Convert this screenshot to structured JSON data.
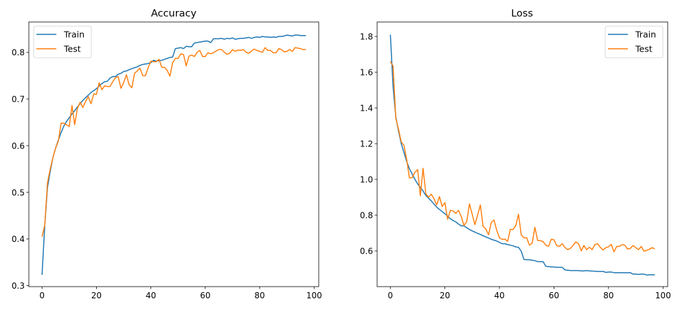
{
  "chart_data": [
    {
      "type": "line",
      "title": "Accuracy",
      "xlabel": "",
      "ylabel": "",
      "xlim": [
        -4.85,
        101.7
      ],
      "ylim": [
        0.298,
        0.865
      ],
      "xticks": [
        0,
        20,
        40,
        60,
        80,
        100
      ],
      "yticks": [
        0.3,
        0.4,
        0.5,
        0.6,
        0.7,
        0.8
      ],
      "xtick_labels": [
        "0",
        "20",
        "40",
        "60",
        "80",
        "100"
      ],
      "ytick_labels": [
        "0.3",
        "0.4",
        "0.5",
        "0.6",
        "0.7",
        "0.8"
      ],
      "grid": false,
      "legend": "upper-left",
      "series": [
        {
          "name": "Train",
          "color": "#1f77b4",
          "values": [
            0.323,
            0.43,
            0.51,
            0.545,
            0.575,
            0.595,
            0.612,
            0.628,
            0.642,
            0.652,
            0.66,
            0.668,
            0.675,
            0.683,
            0.69,
            0.697,
            0.703,
            0.708,
            0.714,
            0.718,
            0.722,
            0.728,
            0.733,
            0.737,
            0.738,
            0.745,
            0.748,
            0.748,
            0.753,
            0.755,
            0.759,
            0.76,
            0.763,
            0.765,
            0.767,
            0.769,
            0.772,
            0.774,
            0.775,
            0.776,
            0.778,
            0.783,
            0.781,
            0.782,
            0.783,
            0.785,
            0.787,
            0.789,
            0.79,
            0.808,
            0.809,
            0.81,
            0.808,
            0.813,
            0.812,
            0.812,
            0.82,
            0.821,
            0.822,
            0.823,
            0.824,
            0.824,
            0.821,
            0.829,
            0.829,
            0.829,
            0.83,
            0.828,
            0.83,
            0.829,
            0.831,
            0.828,
            0.829,
            0.83,
            0.83,
            0.831,
            0.832,
            0.83,
            0.832,
            0.833,
            0.832,
            0.834,
            0.833,
            0.833,
            0.832,
            0.833,
            0.832,
            0.834,
            0.834,
            0.835,
            0.837,
            0.836,
            0.835,
            0.837,
            0.837,
            0.836,
            0.836,
            0.836
          ]
        },
        {
          "name": "Test",
          "color": "#ff7f0e",
          "values": [
            0.405,
            0.43,
            0.52,
            0.55,
            0.575,
            0.595,
            0.61,
            0.648,
            0.648,
            0.645,
            0.641,
            0.686,
            0.645,
            0.68,
            0.693,
            0.682,
            0.695,
            0.705,
            0.69,
            0.711,
            0.71,
            0.735,
            0.72,
            0.728,
            0.727,
            0.727,
            0.737,
            0.746,
            0.748,
            0.723,
            0.735,
            0.752,
            0.731,
            0.724,
            0.755,
            0.76,
            0.766,
            0.75,
            0.75,
            0.767,
            0.781,
            0.78,
            0.78,
            0.785,
            0.768,
            0.768,
            0.761,
            0.749,
            0.778,
            0.787,
            0.787,
            0.797,
            0.795,
            0.771,
            0.792,
            0.794,
            0.791,
            0.8,
            0.804,
            0.791,
            0.791,
            0.799,
            0.797,
            0.799,
            0.803,
            0.806,
            0.806,
            0.8,
            0.796,
            0.798,
            0.806,
            0.802,
            0.805,
            0.804,
            0.806,
            0.8,
            0.798,
            0.803,
            0.807,
            0.804,
            0.802,
            0.8,
            0.81,
            0.804,
            0.804,
            0.799,
            0.799,
            0.808,
            0.806,
            0.801,
            0.802,
            0.806,
            0.802,
            0.81,
            0.809,
            0.808,
            0.806,
            0.806
          ]
        }
      ]
    },
    {
      "type": "line",
      "title": "Loss",
      "xlabel": "",
      "ylabel": "",
      "xlim": [
        -4.85,
        101.7
      ],
      "ylim": [
        0.4,
        1.881
      ],
      "xticks": [
        0,
        20,
        40,
        60,
        80,
        100
      ],
      "yticks": [
        0.6,
        0.8,
        1.0,
        1.2,
        1.4,
        1.6,
        1.8
      ],
      "xtick_labels": [
        "0",
        "20",
        "40",
        "60",
        "80",
        "100"
      ],
      "ytick_labels": [
        "0.6",
        "0.8",
        "1.0",
        "1.2",
        "1.4",
        "1.6",
        "1.8"
      ],
      "grid": false,
      "legend": "upper-right",
      "series": [
        {
          "name": "Train",
          "color": "#1f77b4",
          "values": [
            1.81,
            1.52,
            1.35,
            1.27,
            1.2,
            1.15,
            1.1,
            1.06,
            1.03,
            1.0,
            0.975,
            0.955,
            0.935,
            0.91,
            0.895,
            0.88,
            0.862,
            0.845,
            0.832,
            0.82,
            0.808,
            0.795,
            0.78,
            0.77,
            0.762,
            0.75,
            0.74,
            0.74,
            0.73,
            0.72,
            0.712,
            0.705,
            0.698,
            0.692,
            0.685,
            0.678,
            0.672,
            0.665,
            0.66,
            0.655,
            0.648,
            0.64,
            0.64,
            0.635,
            0.632,
            0.628,
            0.622,
            0.62,
            0.598,
            0.552,
            0.551,
            0.55,
            0.548,
            0.545,
            0.54,
            0.54,
            0.54,
            0.514,
            0.512,
            0.51,
            0.51,
            0.508,
            0.508,
            0.508,
            0.494,
            0.492,
            0.49,
            0.49,
            0.49,
            0.49,
            0.488,
            0.488,
            0.49,
            0.488,
            0.487,
            0.486,
            0.485,
            0.485,
            0.485,
            0.48,
            0.482,
            0.482,
            0.478,
            0.478,
            0.478,
            0.478,
            0.478,
            0.478,
            0.478,
            0.47,
            0.47,
            0.468,
            0.47,
            0.47,
            0.465,
            0.466,
            0.466,
            0.467
          ]
        },
        {
          "name": "Test",
          "color": "#ff7f0e",
          "values": [
            1.66,
            1.635,
            1.343,
            1.28,
            1.21,
            1.19,
            1.11,
            1.008,
            1.01,
            1.04,
            1.055,
            0.908,
            1.062,
            0.92,
            0.9,
            0.917,
            0.892,
            0.857,
            0.904,
            0.848,
            0.87,
            0.777,
            0.827,
            0.824,
            0.81,
            0.827,
            0.792,
            0.742,
            0.763,
            0.863,
            0.805,
            0.747,
            0.8,
            0.857,
            0.738,
            0.723,
            0.69,
            0.758,
            0.773,
            0.716,
            0.673,
            0.665,
            0.666,
            0.654,
            0.72,
            0.72,
            0.742,
            0.805,
            0.69,
            0.673,
            0.673,
            0.632,
            0.643,
            0.732,
            0.658,
            0.658,
            0.652,
            0.632,
            0.625,
            0.665,
            0.662,
            0.63,
            0.625,
            0.64,
            0.62,
            0.607,
            0.614,
            0.63,
            0.65,
            0.64,
            0.6,
            0.63,
            0.607,
            0.62,
            0.607,
            0.635,
            0.64,
            0.62,
            0.605,
            0.618,
            0.623,
            0.637,
            0.595,
            0.625,
            0.625,
            0.635,
            0.632,
            0.61,
            0.614,
            0.63,
            0.618,
            0.607,
            0.625,
            0.598,
            0.603,
            0.61,
            0.618,
            0.611
          ]
        }
      ]
    }
  ]
}
